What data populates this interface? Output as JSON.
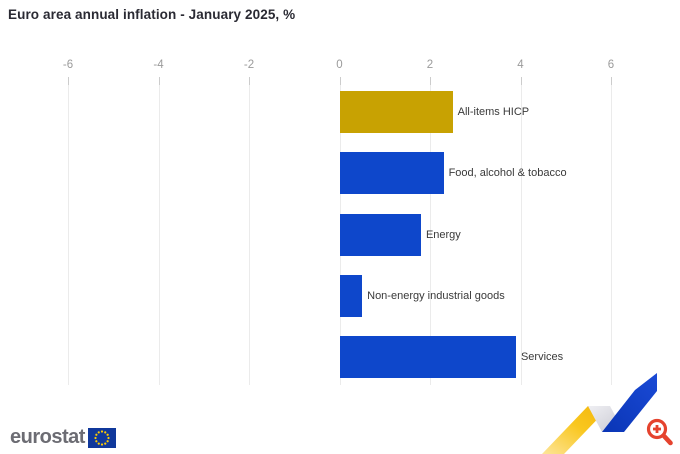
{
  "title": "Euro area annual inflation - January 2025, %",
  "chart_data": {
    "type": "bar",
    "orientation": "horizontal",
    "title": "Euro area annual inflation - January 2025, %",
    "categories": [
      "All-items HICP",
      "Food, alcohol & tobacco",
      "Energy",
      "Non-energy industrial goods",
      "Services"
    ],
    "values": [
      2.5,
      2.3,
      1.8,
      0.5,
      3.9
    ],
    "bar_colors": [
      "#c8a202",
      "#0e47cb",
      "#0e47cb",
      "#0e47cb",
      "#0e47cb"
    ],
    "xlim": [
      -6,
      6
    ],
    "x_ticks": [
      "-6",
      "-4",
      "-2",
      "0",
      "2",
      "4",
      "6"
    ],
    "grid": true,
    "xlabel": "",
    "ylabel": "",
    "legend": "none",
    "unit": "%"
  },
  "colors": {
    "accent_gold": "#c8a202",
    "accent_blue": "#0e47cb",
    "gridline": "#ebebeb",
    "tick_label": "#9b9b9b",
    "category_label": "#3a3a3a",
    "title_text": "#2a2a33",
    "brand_gray": "#6c6c73",
    "eu_flag_blue": "#10389b",
    "eu_star_yellow": "#ffcc00",
    "zoom_icon_red": "#e5432e",
    "zigzag_yellow": "#f9c71f",
    "zigzag_gray": "#d9d9df",
    "zigzag_blue": "#1141c9"
  },
  "footer": {
    "brand": "eurostat"
  },
  "icons": {
    "logo_flag": "eu-flag",
    "decoration": "zigzag-trend-ribbon",
    "zoom": "magnifier-plus"
  }
}
